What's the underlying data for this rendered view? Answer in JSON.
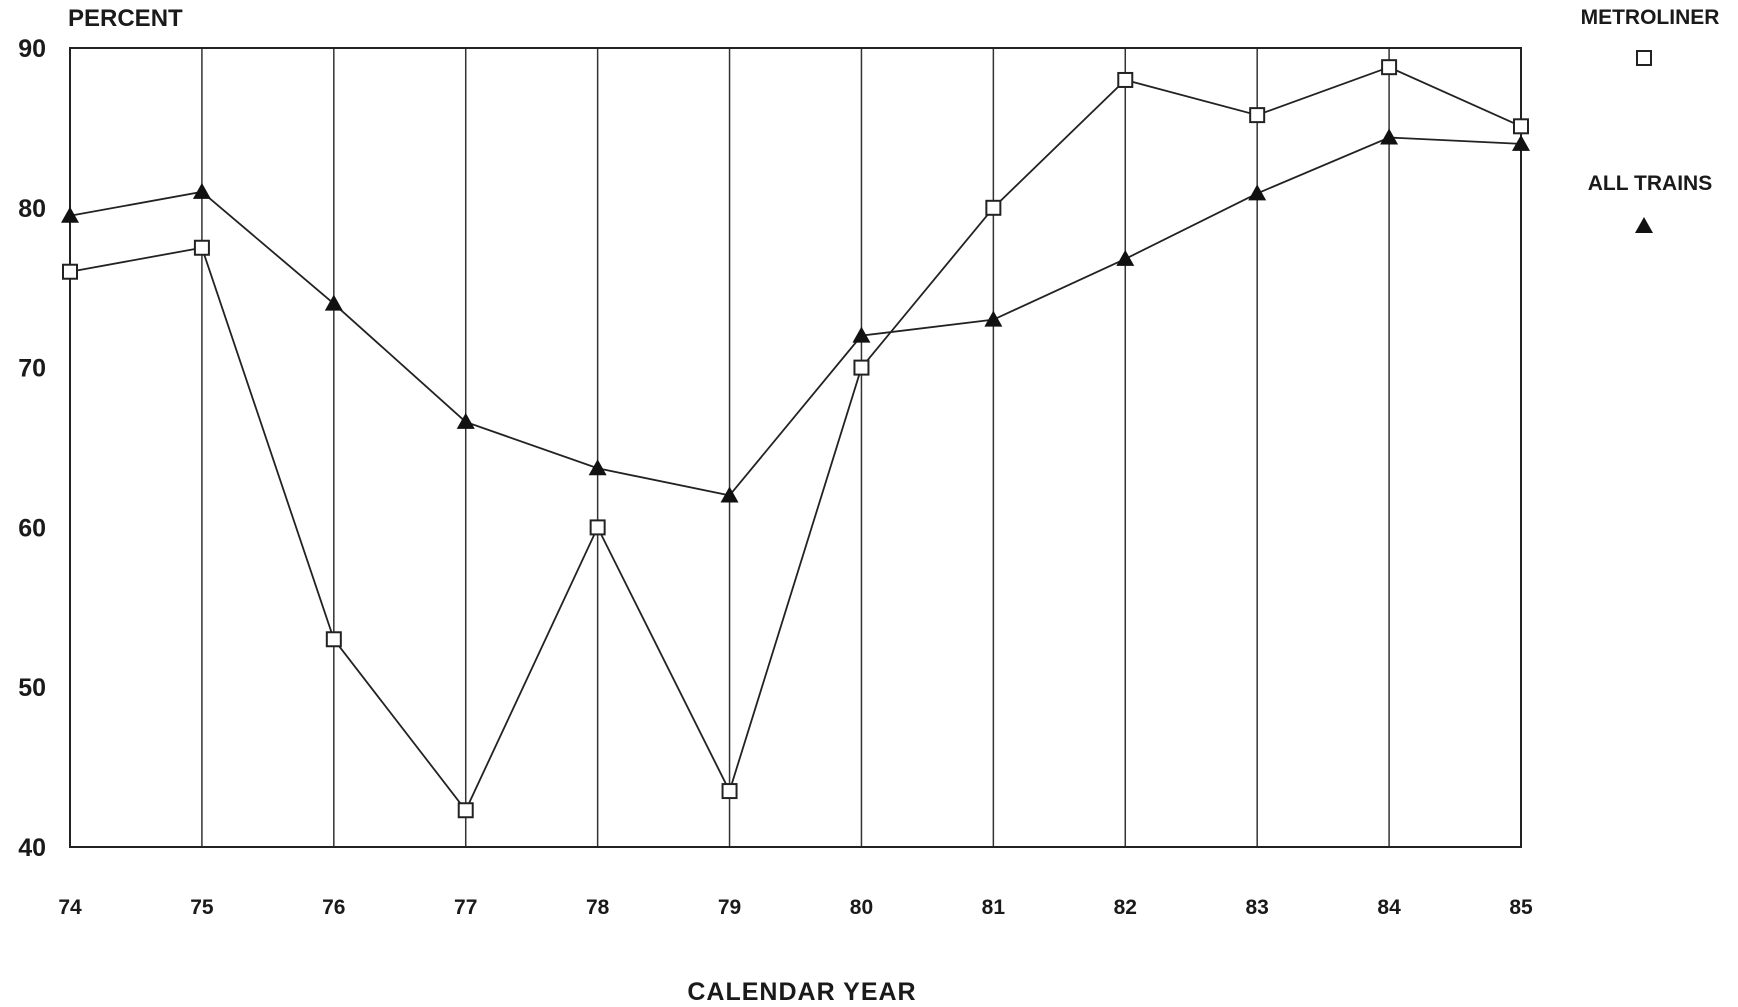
{
  "chart_data": {
    "type": "line",
    "ylabel": "PERCENT",
    "xlabel": "CALENDAR YEAR",
    "x": [
      "74",
      "75",
      "76",
      "77",
      "78",
      "79",
      "80",
      "81",
      "82",
      "83",
      "84",
      "85"
    ],
    "ylim": [
      40,
      90
    ],
    "yticks": [
      40,
      50,
      60,
      70,
      80,
      90
    ],
    "grid": "vertical lines at each year",
    "legend_position": "top-right, outside plot",
    "series": [
      {
        "name": "METROLINER",
        "marker": "open-square",
        "values": [
          76,
          77.5,
          53,
          42.3,
          60,
          43.5,
          70,
          80,
          88,
          85.8,
          88.8,
          85.1
        ]
      },
      {
        "name": "ALL TRAINS",
        "marker": "filled-triangle",
        "values": [
          79.5,
          81,
          74,
          66.6,
          63.7,
          62,
          72,
          73,
          76.8,
          80.9,
          84.4,
          84
        ]
      }
    ]
  }
}
